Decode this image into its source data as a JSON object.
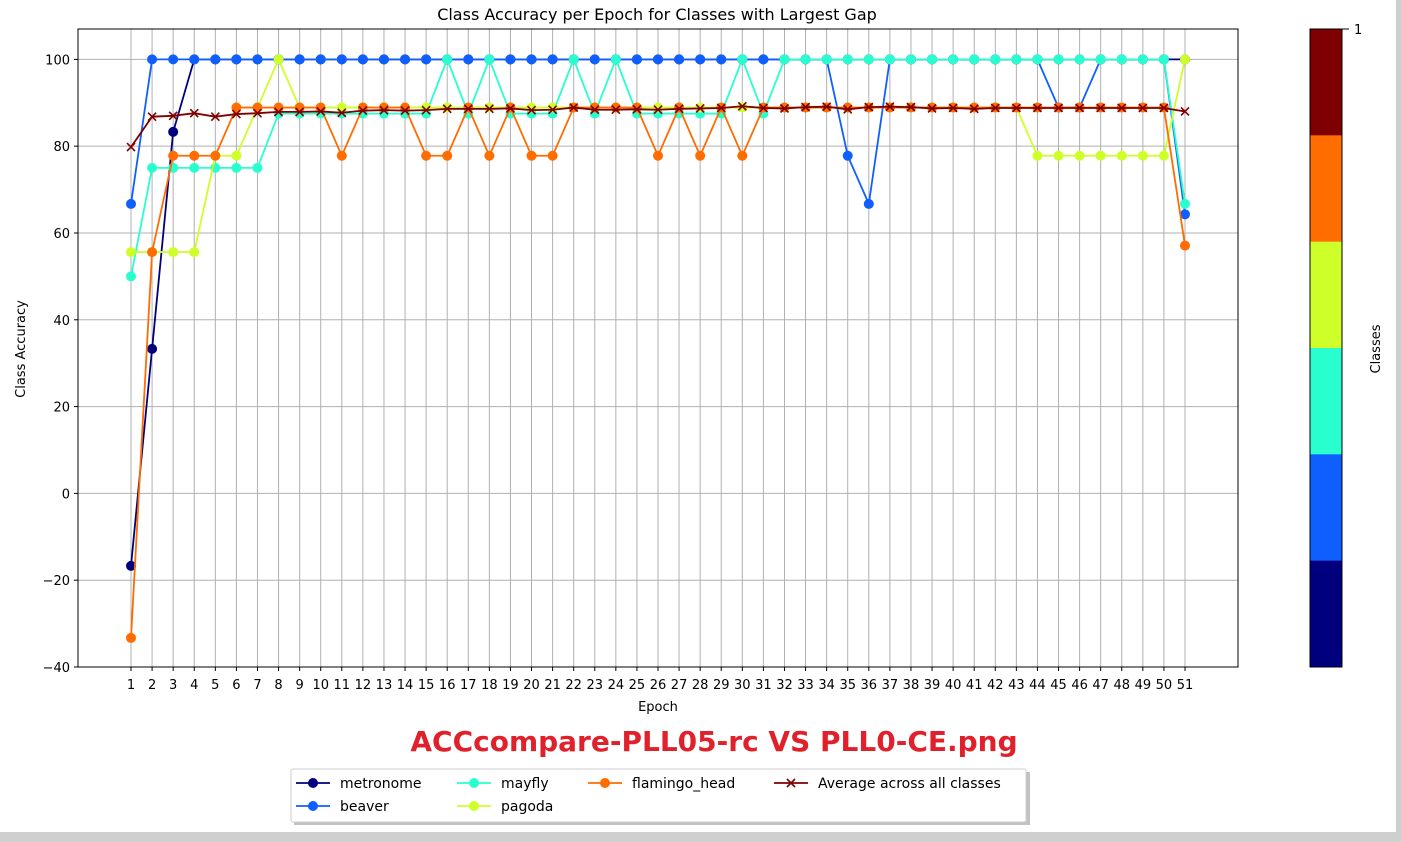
{
  "chart_data": {
    "type": "line",
    "title": "Class Accuracy per Epoch for Classes with Largest Gap",
    "xlabel": "Epoch",
    "ylabel": "Class Accuracy",
    "ylim": [
      -40,
      107
    ],
    "yticks": [
      -40,
      -20,
      0,
      20,
      40,
      60,
      80,
      100
    ],
    "x": [
      1,
      2,
      3,
      4,
      5,
      6,
      7,
      8,
      9,
      10,
      11,
      12,
      13,
      14,
      15,
      16,
      17,
      18,
      19,
      20,
      21,
      22,
      23,
      24,
      25,
      26,
      27,
      28,
      29,
      30,
      31,
      32,
      33,
      34,
      35,
      36,
      37,
      38,
      39,
      40,
      41,
      42,
      43,
      44,
      45,
      46,
      47,
      48,
      49,
      50,
      51
    ],
    "grid": true,
    "legend_position": "bottom-center",
    "series": [
      {
        "name": "metronome",
        "color": "#00007f",
        "marker": "circle",
        "values": [
          -16.7,
          33.3,
          83.3,
          100,
          100,
          100,
          100,
          100,
          100,
          100,
          100,
          100,
          100,
          100,
          100,
          100,
          100,
          100,
          100,
          100,
          100,
          100,
          100,
          100,
          100,
          100,
          100,
          100,
          100,
          100,
          100,
          100,
          100,
          100,
          100,
          100,
          100,
          100,
          100,
          100,
          100,
          100,
          100,
          100,
          100,
          100,
          100,
          100,
          100,
          100,
          100
        ]
      },
      {
        "name": "beaver",
        "color": "#0f5fff",
        "marker": "circle",
        "values": [
          66.7,
          100,
          100,
          100,
          100,
          100,
          100,
          100,
          100,
          100,
          100,
          100,
          100,
          100,
          100,
          100,
          100,
          100,
          100,
          100,
          100,
          100,
          100,
          100,
          100,
          100,
          100,
          100,
          100,
          100,
          100,
          100,
          100,
          100,
          77.8,
          66.7,
          100,
          100,
          100,
          100,
          100,
          100,
          100,
          100,
          88.9,
          88.9,
          100,
          100,
          100,
          100,
          64.3
        ]
      },
      {
        "name": "mayfly",
        "color": "#29ffce",
        "marker": "circle",
        "values": [
          50,
          75,
          75,
          75,
          75,
          75,
          75,
          87.5,
          87.5,
          87.5,
          87.5,
          87.5,
          87.5,
          87.5,
          87.5,
          100,
          87.5,
          100,
          87.5,
          87.5,
          87.5,
          100,
          87.5,
          100,
          87.5,
          87.5,
          87.5,
          87.5,
          87.5,
          100,
          87.5,
          100,
          100,
          100,
          100,
          100,
          100,
          100,
          100,
          100,
          100,
          100,
          100,
          100,
          100,
          100,
          100,
          100,
          100,
          100,
          66.7
        ]
      },
      {
        "name": "pagoda",
        "color": "#ceff29",
        "marker": "circle",
        "values": [
          55.6,
          55.6,
          55.6,
          55.6,
          77.8,
          77.8,
          88.9,
          100,
          88.9,
          88.9,
          88.9,
          88.9,
          88.9,
          88.9,
          88.9,
          88.9,
          88.9,
          88.9,
          88.9,
          88.9,
          88.9,
          88.9,
          88.9,
          88.9,
          88.9,
          88.9,
          88.9,
          88.9,
          88.9,
          88.9,
          88.9,
          88.9,
          88.9,
          88.9,
          88.9,
          88.9,
          88.9,
          88.9,
          88.9,
          88.9,
          88.9,
          88.9,
          88.9,
          77.8,
          77.8,
          77.8,
          77.8,
          77.8,
          77.8,
          77.8,
          100
        ]
      },
      {
        "name": "flamingo_head",
        "color": "#ff6c00",
        "marker": "circle",
        "values": [
          -33.3,
          55.6,
          77.8,
          77.8,
          77.8,
          88.9,
          88.9,
          88.9,
          88.9,
          88.9,
          77.8,
          88.9,
          88.9,
          88.9,
          77.8,
          77.8,
          88.9,
          77.8,
          88.9,
          77.8,
          77.8,
          88.9,
          88.9,
          88.9,
          88.9,
          77.8,
          88.9,
          77.8,
          88.9,
          77.8,
          88.9,
          88.9,
          88.9,
          88.9,
          88.9,
          88.9,
          88.9,
          88.9,
          88.9,
          88.9,
          88.9,
          88.9,
          88.9,
          88.9,
          88.9,
          88.9,
          88.9,
          88.9,
          88.9,
          88.9,
          57.1
        ]
      },
      {
        "name": "Average across all classes",
        "color": "#7f0000",
        "marker": "x",
        "values": [
          79.8,
          86.8,
          87,
          87.6,
          86.8,
          87.4,
          87.6,
          87.9,
          87.9,
          88,
          87.7,
          88.2,
          88.3,
          88.2,
          88.3,
          88.6,
          88.6,
          88.6,
          88.7,
          88.3,
          88.4,
          88.9,
          88.4,
          88.4,
          88.5,
          88.4,
          88.6,
          88.7,
          88.8,
          89.2,
          88.8,
          88.7,
          89,
          89.1,
          88.5,
          89,
          89.1,
          89,
          88.7,
          88.8,
          88.6,
          88.8,
          88.8,
          88.8,
          88.8,
          88.8,
          88.8,
          88.8,
          88.8,
          88.8,
          88
        ]
      }
    ]
  },
  "colorbar": {
    "label": "Classes",
    "top_tick": "1",
    "colors": [
      "#7f0000",
      "#ff6c00",
      "#ceff29",
      "#29ffce",
      "#0f5fff",
      "#00007f"
    ]
  },
  "caption": "ACCcompare-PLL05-rc VS PLL0-CE.png"
}
